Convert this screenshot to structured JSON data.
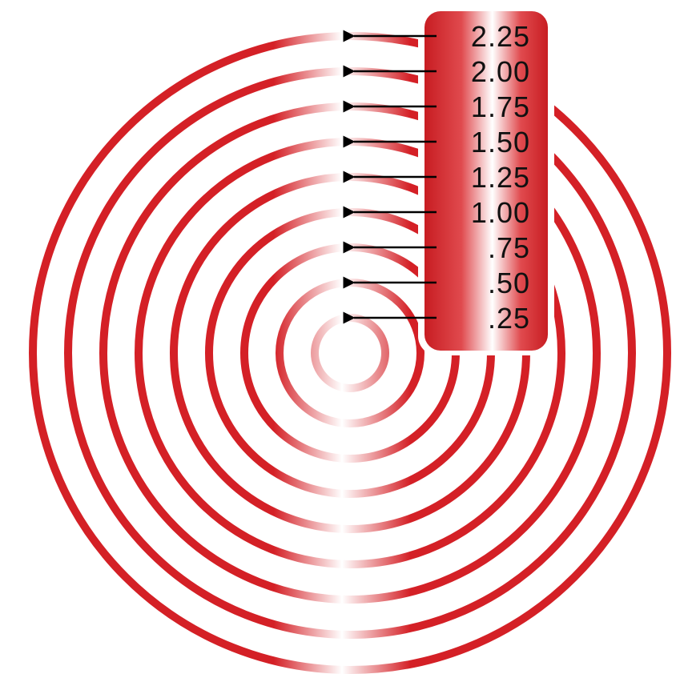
{
  "diagram": {
    "ring_color": "#d42026",
    "highlight_color": "#ffffff",
    "arrow_color": "#000000",
    "labels": [
      "2.25",
      "2.00",
      "1.75",
      "1.50",
      "1.25",
      "1.00",
      ".75",
      ".50",
      ".25"
    ],
    "ring_values": [
      0.25,
      0.5,
      0.75,
      1.0,
      1.25,
      1.5,
      1.75,
      2.0,
      2.25
    ]
  }
}
